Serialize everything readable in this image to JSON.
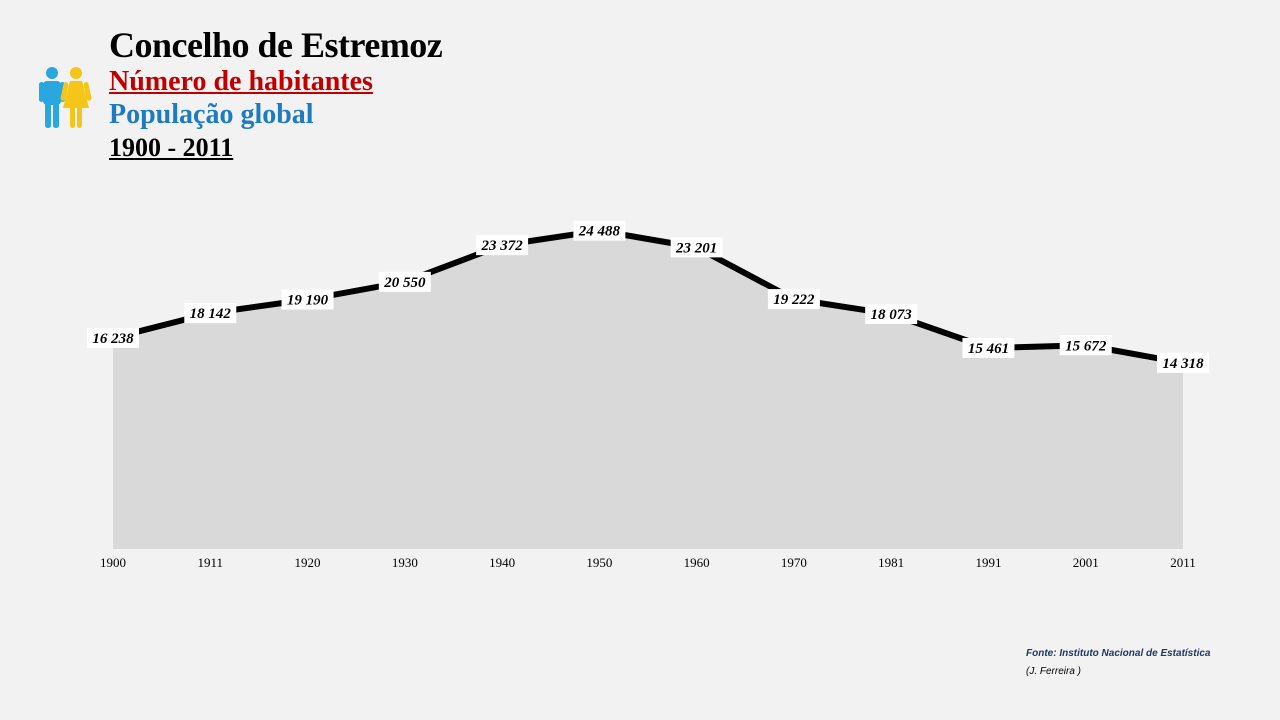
{
  "header": {
    "title": "Concelho de Estremoz",
    "subtitle": "Número de habitantes",
    "subtitle2": "População global",
    "period": "1900 - 2011"
  },
  "icon": "people-male-female-icon",
  "colors": {
    "title": "#000000",
    "subtitle": "#c00000",
    "subtitle2": "#1f7bc1",
    "area": "#d9d9d9",
    "line": "#000000",
    "background": "#f2f2f2",
    "male": "#29a8e0",
    "female": "#f5c518"
  },
  "chart_data": {
    "type": "area",
    "title": "",
    "xlabel": "",
    "ylabel": "",
    "x": [
      "1900",
      "1911",
      "1920",
      "1930",
      "1940",
      "1950",
      "1960",
      "1970",
      "1981",
      "1991",
      "2001",
      "2011"
    ],
    "series": [
      {
        "values": [
          16238,
          18142,
          19190,
          20550,
          23372,
          24488,
          23201,
          19222,
          18073,
          15461,
          15672,
          14318
        ],
        "labels": [
          "16 238",
          "18 142",
          "19 190",
          "20 550",
          "23 372",
          "24 488",
          "23 201",
          "19 222",
          "18 073",
          "15 461",
          "15 672",
          "14 318"
        ]
      }
    ],
    "ylim": [
      0,
      25000
    ],
    "grid": false,
    "legend": "none"
  },
  "footer": {
    "source": "Fonte: Instituto Nacional de Estatística",
    "author": "(J. Ferreira )"
  }
}
